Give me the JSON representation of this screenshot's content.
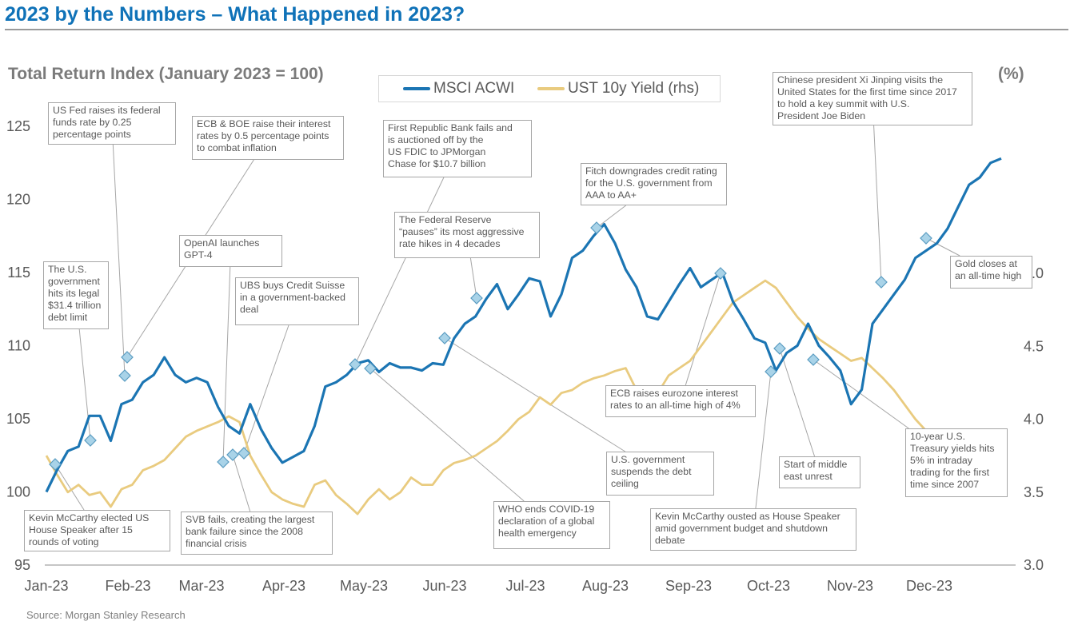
{
  "header": {
    "title": "2023 by the Numbers – What Happened in 2023?",
    "left_axis_title": "Total Return Index (January 2023 = 100)",
    "right_axis_title": "(%)",
    "source": "Source: Morgan Stanley Research"
  },
  "colors": {
    "acwi": "#1b75b3",
    "ust": "#e9cb7f",
    "marker": "#a9d3e8",
    "title": "#0f72b8"
  },
  "chart_data": {
    "type": "line",
    "x_tick_labels": [
      "Jan-23",
      "Feb-23",
      "Mar-23",
      "Apr-23",
      "May-23",
      "Jun-23",
      "Jul-23",
      "Aug-23",
      "Sep-23",
      "Oct-23",
      "Nov-23",
      "Dec-23"
    ],
    "x_range_weeks": [
      0,
      52
    ],
    "left_axis": {
      "ticks": [
        "95",
        "100",
        "105",
        "110",
        "115",
        "120",
        "125"
      ],
      "range": [
        95,
        127
      ]
    },
    "right_axis": {
      "ticks": [
        "3.0",
        "3.5",
        "4.0",
        "4.5",
        "5.0"
      ],
      "range": [
        3.0,
        5.2
      ]
    },
    "legend": [
      "MSCI ACWI",
      "UST 10y Yield (rhs)"
    ],
    "series": [
      {
        "name": "MSCI ACWI",
        "axis": "left",
        "values": [
          100.0,
          101.5,
          102.8,
          103.1,
          105.2,
          105.2,
          103.5,
          106.0,
          106.3,
          107.5,
          108.0,
          109.2,
          108.0,
          107.5,
          107.8,
          107.5,
          105.8,
          104.5,
          104.0,
          106.0,
          104.3,
          103.0,
          102.0,
          102.4,
          102.8,
          104.5,
          107.2,
          107.5,
          108.0,
          108.8,
          109.0,
          108.2,
          108.8,
          108.5,
          108.5,
          108.3,
          108.8,
          108.7,
          110.5,
          111.5,
          112.0,
          113.2,
          114.2,
          112.5,
          113.5,
          114.6,
          114.4,
          112.0,
          113.5,
          116.0,
          116.5,
          117.5,
          118.3,
          117.0,
          115.2,
          114.0,
          112.0,
          111.8,
          113.0,
          114.2,
          115.3,
          114.0,
          114.5,
          115.0,
          113.0,
          111.8,
          110.5,
          110.2,
          108.3,
          109.5,
          110.0,
          111.5,
          110.0,
          109.2,
          108.3,
          106.0,
          107.0,
          111.5,
          112.5,
          113.5,
          114.5,
          116.0,
          116.5,
          117.0,
          118.0,
          119.5,
          121.0,
          121.5,
          122.5,
          122.8
        ]
      },
      {
        "name": "UST 10y Yield (rhs)",
        "axis": "right",
        "values": [
          3.75,
          3.62,
          3.5,
          3.55,
          3.48,
          3.5,
          3.4,
          3.52,
          3.55,
          3.65,
          3.68,
          3.72,
          3.8,
          3.88,
          3.92,
          3.95,
          3.98,
          4.02,
          3.98,
          3.75,
          3.62,
          3.5,
          3.45,
          3.42,
          3.4,
          3.55,
          3.58,
          3.48,
          3.42,
          3.35,
          3.45,
          3.52,
          3.45,
          3.5,
          3.6,
          3.55,
          3.55,
          3.65,
          3.7,
          3.72,
          3.75,
          3.8,
          3.85,
          3.92,
          4.0,
          4.05,
          4.15,
          4.1,
          4.18,
          4.2,
          4.25,
          4.28,
          4.3,
          4.33,
          4.35,
          4.2,
          4.12,
          4.18,
          4.3,
          4.35,
          4.4,
          4.5,
          4.6,
          4.7,
          4.8,
          4.85,
          4.9,
          4.95,
          4.9,
          4.8,
          4.7,
          4.62,
          4.55,
          4.5,
          4.45,
          4.4,
          4.42,
          4.35,
          4.28,
          4.2,
          4.1,
          4.0,
          3.92,
          3.88,
          3.85,
          3.85,
          3.8,
          3.78,
          3.85,
          3.88
        ]
      }
    ],
    "markers": [
      {
        "week": 0.8,
        "y": 102.0
      },
      {
        "week": 2.8,
        "y": 103.6
      },
      {
        "week": 4.5,
        "y": 108.0
      },
      {
        "week": 4.7,
        "y": 109.3
      },
      {
        "week": 10.4,
        "y": 102.1
      },
      {
        "week": 10.8,
        "y": 102.5
      },
      {
        "week": 11.3,
        "y": 102.7
      },
      {
        "week": 17.0,
        "y": 108.8
      },
      {
        "week": 17.7,
        "y": 108.5
      },
      {
        "week": 21.3,
        "y": 110.6
      },
      {
        "week": 23.0,
        "y": 113.3
      },
      {
        "week": 29.4,
        "y": 118.3
      },
      {
        "week": 36.0,
        "y": 115.0
      },
      {
        "week": 38.7,
        "y": 108.4
      },
      {
        "week": 39.3,
        "y": 109.9
      },
      {
        "week": 41.3,
        "y": 109.2
      },
      {
        "week": 45.0,
        "y": 114.5
      },
      {
        "week": 47.2,
        "y": 117.5
      }
    ]
  },
  "annotations": [
    {
      "id": "mccarthy-elected",
      "lines": [
        "Kevin McCarthy elected US",
        "House Speaker after 15",
        "rounds of voting"
      ]
    },
    {
      "id": "debt-limit",
      "lines": [
        "The U.S.",
        "government",
        "hits its legal",
        "$31.4 trillion",
        "debt limit"
      ]
    },
    {
      "id": "fed-hike",
      "lines": [
        "US Fed raises its federal",
        "funds rate by 0.25",
        "percentage points"
      ]
    },
    {
      "id": "ecb-boe",
      "lines": [
        "ECB & BOE raise their interest",
        "rates by 0.5 percentage points",
        "to combat inflation"
      ]
    },
    {
      "id": "openai",
      "lines": [
        "OpenAI launches",
        "GPT-4"
      ]
    },
    {
      "id": "ubs",
      "lines": [
        "UBS buys Credit Suisse",
        "in a government-backed",
        "deal"
      ]
    },
    {
      "id": "svb",
      "lines": [
        "SVB fails, creating the largest",
        "bank failure since the 2008",
        "financial crisis"
      ]
    },
    {
      "id": "first-republic",
      "lines": [
        "First Republic Bank fails and",
        "is auctioned off by the",
        "US FDIC to JPMorgan",
        "Chase for $10.7 billion"
      ]
    },
    {
      "id": "fed-pause",
      "lines": [
        "The Federal Reserve",
        "“pauses” its most aggressive",
        "rate hikes in 4 decades"
      ]
    },
    {
      "id": "who",
      "lines": [
        "WHO ends COVID-19",
        "declaration of a global",
        "health emergency"
      ]
    },
    {
      "id": "debt-ceiling",
      "lines": [
        "U.S. government",
        "suspends the debt",
        "ceiling"
      ]
    },
    {
      "id": "fitch",
      "lines": [
        "Fitch downgrades credit rating",
        "for the U.S. government from",
        "AAA to AA+"
      ]
    },
    {
      "id": "ecb-high",
      "lines": [
        "ECB raises eurozone interest",
        "rates to an all-time high of 4%"
      ]
    },
    {
      "id": "mccarthy-ousted",
      "lines": [
        "Kevin McCarthy ousted as House Speaker",
        "amid government budget and shutdown",
        "debate"
      ]
    },
    {
      "id": "mideast",
      "lines": [
        "Start of middle",
        "east unrest"
      ]
    },
    {
      "id": "treasury-5",
      "lines": [
        "10-year U.S.",
        "Treasury yields hits",
        "5% in intraday",
        "trading for the first",
        "time since 2007"
      ]
    },
    {
      "id": "xi",
      "lines": [
        "Chinese president Xi Jinping visits the",
        "United States for the first time since 2017",
        "to hold a key summit with U.S.",
        "President Joe Biden"
      ]
    },
    {
      "id": "gold",
      "lines": [
        "Gold closes at",
        "an all-time high"
      ]
    }
  ]
}
